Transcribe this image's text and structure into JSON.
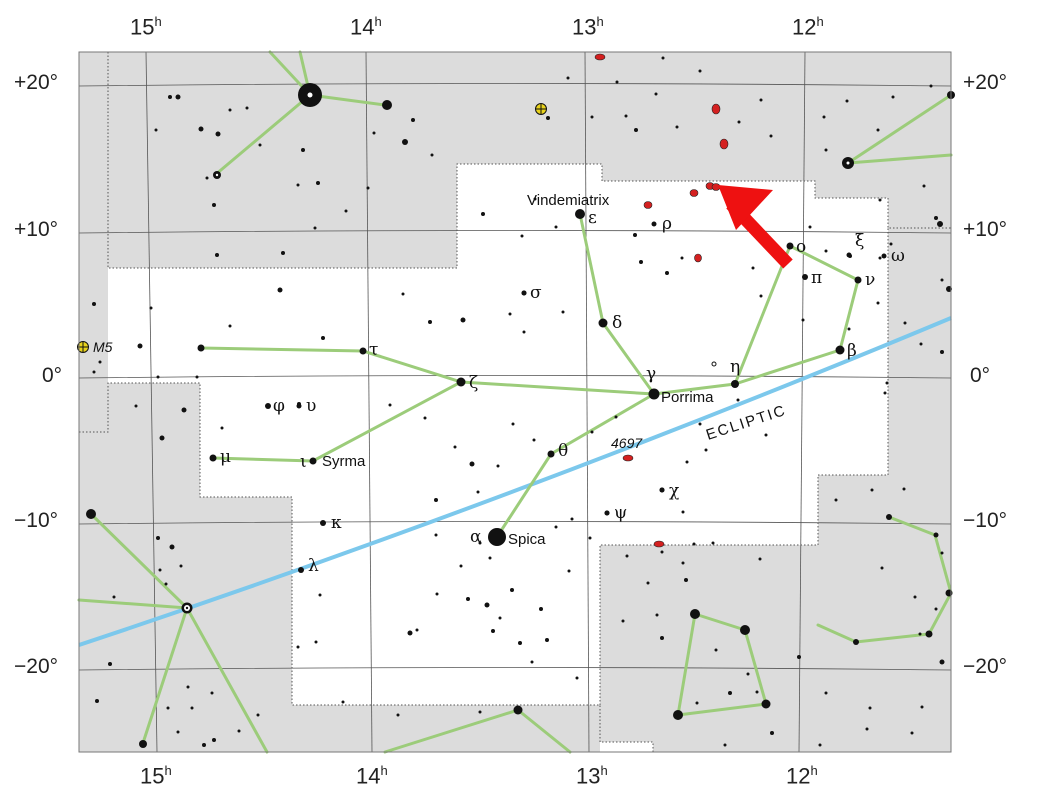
{
  "ra_labels": [
    "15",
    "14",
    "13",
    "12"
  ],
  "ra_unit": "h",
  "dec_labels": [
    "+20°",
    "+10°",
    "0°",
    "−10°",
    "−20°"
  ],
  "ecliptic_label": "ECLIPTIC",
  "star_names": {
    "vindemiatrix": "Vindemiatrix",
    "porrima": "Porrima",
    "spica": "Spica",
    "syrma": "Syrma"
  },
  "objects": {
    "m5": "M5",
    "ngc4697": "4697"
  },
  "greek": {
    "alpha": "α",
    "beta": "β",
    "gamma": "γ",
    "delta": "δ",
    "epsilon": "ε",
    "zeta": "ζ",
    "eta": "η",
    "theta": "θ",
    "iota": "ι",
    "kappa": "κ",
    "lambda": "λ",
    "mu": "μ",
    "nu": "ν",
    "xi": "ξ",
    "omicron": "ο",
    "pi": "π",
    "rho": "ρ",
    "sigma": "σ",
    "tau": "τ",
    "upsilon": "υ",
    "phi": "φ",
    "chi": "χ",
    "psi": "ψ",
    "omega": "ω"
  },
  "colors": {
    "outside_region": "#dcdcdc",
    "constellation_lines": "#9ccc7a",
    "ecliptic": "#7cc8ec",
    "galaxies": "#d42020",
    "arrow": "#ee1111"
  }
}
